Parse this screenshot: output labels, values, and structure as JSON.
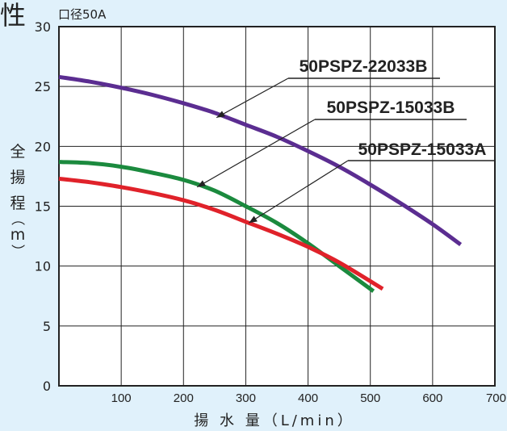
{
  "chart_data": {
    "type": "line",
    "title": "性",
    "subtitle": "口径50A",
    "xlabel": "揚 水 量（L/min）",
    "ylabel": [
      "全",
      "揚",
      "程",
      "（",
      "m",
      "）"
    ],
    "xlim": [
      0,
      700
    ],
    "ylim": [
      0,
      30
    ],
    "xticks": [
      100,
      200,
      300,
      400,
      500,
      600,
      700
    ],
    "yticks": [
      0,
      5,
      10,
      15,
      20,
      25,
      30
    ],
    "grid": true,
    "series": [
      {
        "name": "50PSPZ-22033B",
        "color": "#5b2d91",
        "x": [
          0,
          50,
          100,
          150,
          200,
          250,
          300,
          350,
          400,
          450,
          500,
          550,
          600,
          645
        ],
        "y": [
          25.8,
          25.4,
          24.9,
          24.3,
          23.6,
          22.8,
          21.8,
          20.8,
          19.6,
          18.3,
          16.8,
          15.2,
          13.5,
          11.8
        ]
      },
      {
        "name": "50PSPZ-15033B",
        "color": "#1b8a3e",
        "x": [
          0,
          50,
          100,
          150,
          200,
          250,
          300,
          350,
          400,
          450,
          505
        ],
        "y": [
          18.7,
          18.6,
          18.3,
          17.8,
          17.2,
          16.3,
          15.0,
          13.6,
          11.9,
          10.0,
          7.9
        ]
      },
      {
        "name": "50PSPZ-15033A",
        "color": "#e0222a",
        "x": [
          0,
          50,
          100,
          150,
          200,
          250,
          300,
          350,
          400,
          450,
          520
        ],
        "y": [
          17.3,
          17.0,
          16.6,
          16.1,
          15.5,
          14.7,
          13.7,
          12.7,
          11.6,
          10.3,
          8.1
        ]
      }
    ],
    "annotations": [
      {
        "series": 0,
        "text": "50PSPZ-22033B",
        "point": [
          253,
          22.4
        ]
      },
      {
        "series": 1,
        "text": "50PSPZ-15033B",
        "point": [
          222,
          16.6
        ]
      },
      {
        "series": 2,
        "text": "50PSPZ-15033A",
        "point": [
          305,
          13.6
        ]
      }
    ]
  }
}
